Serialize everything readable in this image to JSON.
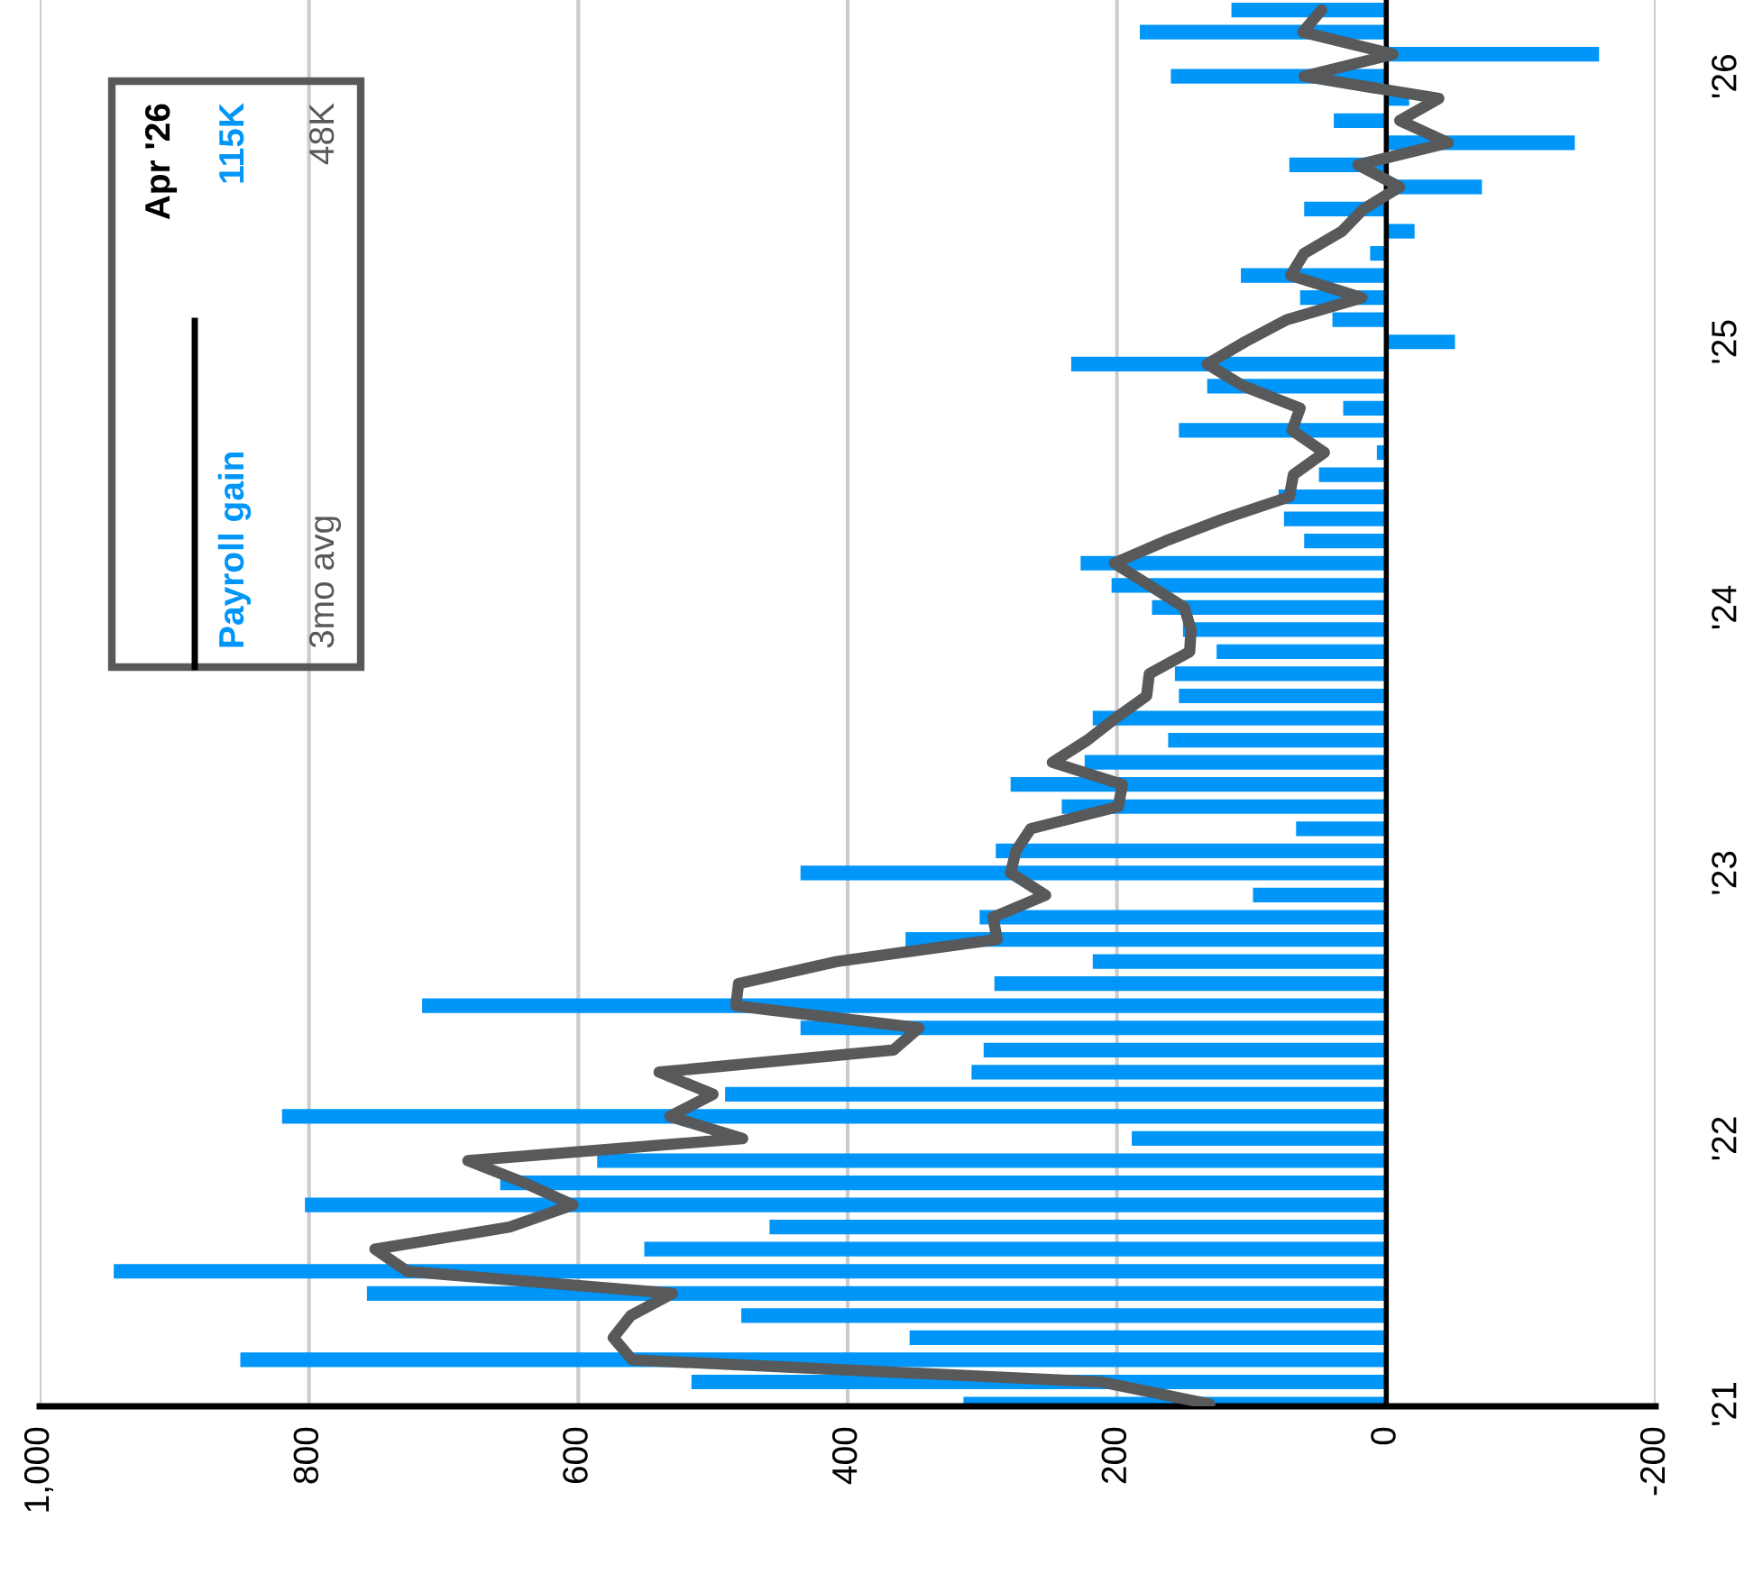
{
  "chart_data": {
    "type": "bar",
    "orientation": "horizontal",
    "categories": [
      null,
      null,
      null,
      "'26",
      null,
      null,
      null,
      null,
      null,
      null,
      null,
      null,
      null,
      null,
      null,
      "'25",
      null,
      null,
      null,
      null,
      null,
      null,
      null,
      null,
      null,
      null,
      null,
      "'24",
      null,
      null,
      null,
      null,
      null,
      null,
      null,
      null,
      null,
      null,
      null,
      "'23",
      null,
      null,
      null,
      null,
      null,
      null,
      null,
      null,
      null,
      null,
      null,
      "'22",
      null,
      null,
      null,
      null,
      null,
      null,
      null,
      null,
      null,
      null,
      null,
      "'21"
    ],
    "series": [
      {
        "name": "Payroll gain",
        "color": "#0095f8",
        "values": [
          115,
          183,
          -158,
          160,
          -17,
          39,
          -140,
          72,
          -71,
          61,
          -21,
          12,
          108,
          64,
          40,
          -51,
          234,
          133,
          32,
          154,
          7,
          50,
          80,
          76,
          61,
          227,
          204,
          174,
          151,
          126,
          157,
          154,
          218,
          162,
          224,
          279,
          241,
          67,
          290,
          435,
          99,
          302,
          357,
          218,
          291,
          716,
          435,
          299,
          308,
          491,
          820,
          189,
          586,
          658,
          803,
          458,
          551,
          945,
          757,
          479,
          354,
          851,
          516,
          314
        ]
      },
      {
        "name": "3mo avg",
        "type": "line",
        "color": "#58595b",
        "values": [
          48,
          62,
          -5,
          61,
          -39,
          -10,
          -46,
          21,
          -10,
          17,
          33,
          61,
          71,
          18,
          74,
          105,
          133,
          106,
          64,
          70,
          46,
          69,
          72,
          121,
          164,
          202,
          176,
          150,
          145,
          146,
          176,
          178,
          201,
          222,
          248,
          196,
          199,
          264,
          275,
          279,
          253,
          292,
          289,
          408,
          481,
          483,
          347,
          366,
          540,
          500,
          532,
          478,
          682,
          640,
          604,
          651,
          751,
          727,
          530,
          561,
          574,
          560,
          212,
          131
        ]
      }
    ],
    "xlim": [
      1000,
      -200
    ],
    "xticks": [
      {
        "value": 1000,
        "label": "1,000"
      },
      800,
      600,
      400,
      200,
      0,
      -200
    ],
    "grid": "x",
    "legend": "top left",
    "line_style": "solid",
    "marker": "none",
    "ref_lines": [
      {
        "axis": "x",
        "value": 0,
        "color": "#000000"
      }
    ],
    "annotations": [
      "Apr '26",
      "115K",
      "48K"
    ]
  }
}
